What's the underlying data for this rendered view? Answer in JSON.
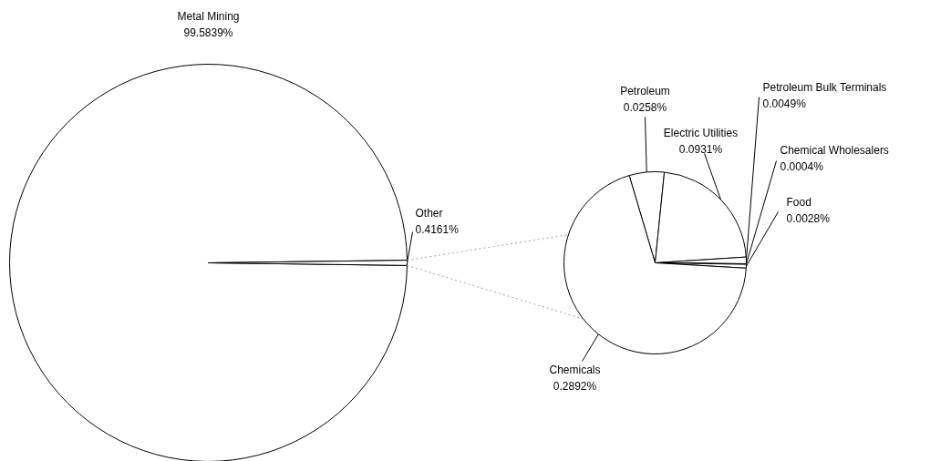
{
  "chart_data": [
    {
      "type": "pie",
      "categories": [
        "Metal Mining",
        "Other"
      ],
      "values": [
        99.5839,
        0.4161
      ],
      "colors": [
        "#ffffff",
        "#ffffff"
      ],
      "value_labels": [
        "99.5839%",
        "0.4161%"
      ]
    },
    {
      "type": "pie",
      "categories": [
        "Petroleum",
        "Electric Utilities",
        "Petroleum Bulk Terminals",
        "Chemical Wholesalers",
        "Food",
        "Chemicals"
      ],
      "values": [
        0.0258,
        0.0931,
        0.0049,
        0.0004,
        0.0028,
        0.2892
      ],
      "colors": [
        "#ffffff",
        "#ffffff",
        "#ffffff",
        "#ffffff",
        "#ffffff",
        "#ffffff"
      ],
      "value_labels": [
        "0.0258%",
        "0.0931%",
        "0.0049%",
        "0.0004%",
        "0.0028%",
        "0.2892%"
      ]
    }
  ]
}
